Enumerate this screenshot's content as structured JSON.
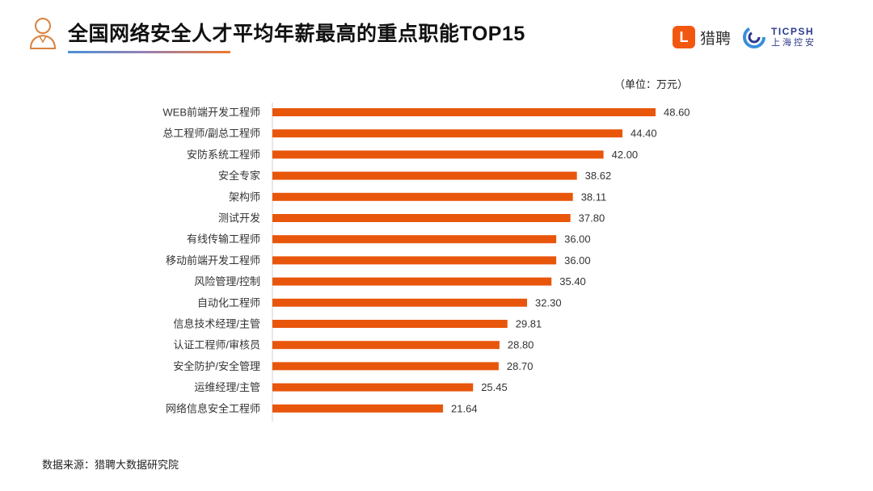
{
  "header": {
    "title": "全国网络安全人才平均年薪最高的重点职能TOP15",
    "logo_liepin": "猎聘",
    "logo_ticpsh_en": "TICPSH",
    "logo_ticpsh_cn": "上海控安"
  },
  "chart_data": {
    "type": "bar",
    "orientation": "horizontal",
    "title": "全国网络安全人才平均年薪最高的重点职能TOP15",
    "unit_label": "（单位：万元）",
    "categories": [
      "WEB前端开发工程师",
      "总工程师/副总工程师",
      "安防系统工程师",
      "安全专家",
      "架构师",
      "测试开发",
      "有线传输工程师",
      "移动前端开发工程师",
      "风险管理/控制",
      "自动化工程师",
      "信息技术经理/主管",
      "认证工程师/审核员",
      "安全防护/安全管理",
      "运维经理/主管",
      "网络信息安全工程师"
    ],
    "values": [
      48.6,
      44.4,
      42.0,
      38.62,
      38.11,
      37.8,
      36.0,
      36.0,
      35.4,
      32.3,
      29.81,
      28.8,
      28.7,
      25.45,
      21.64
    ],
    "data_labels": [
      "48.60",
      "44.40",
      "42.00",
      "38.62",
      "38.11",
      "37.80",
      "36.00",
      "36.00",
      "35.40",
      "32.30",
      "29.81",
      "28.80",
      "28.70",
      "25.45",
      "21.64"
    ],
    "bar_color": "#e8560c",
    "xlim": [
      0,
      50
    ],
    "grid": false
  },
  "footer": {
    "source": "数据来源：猎聘大数据研究院"
  }
}
